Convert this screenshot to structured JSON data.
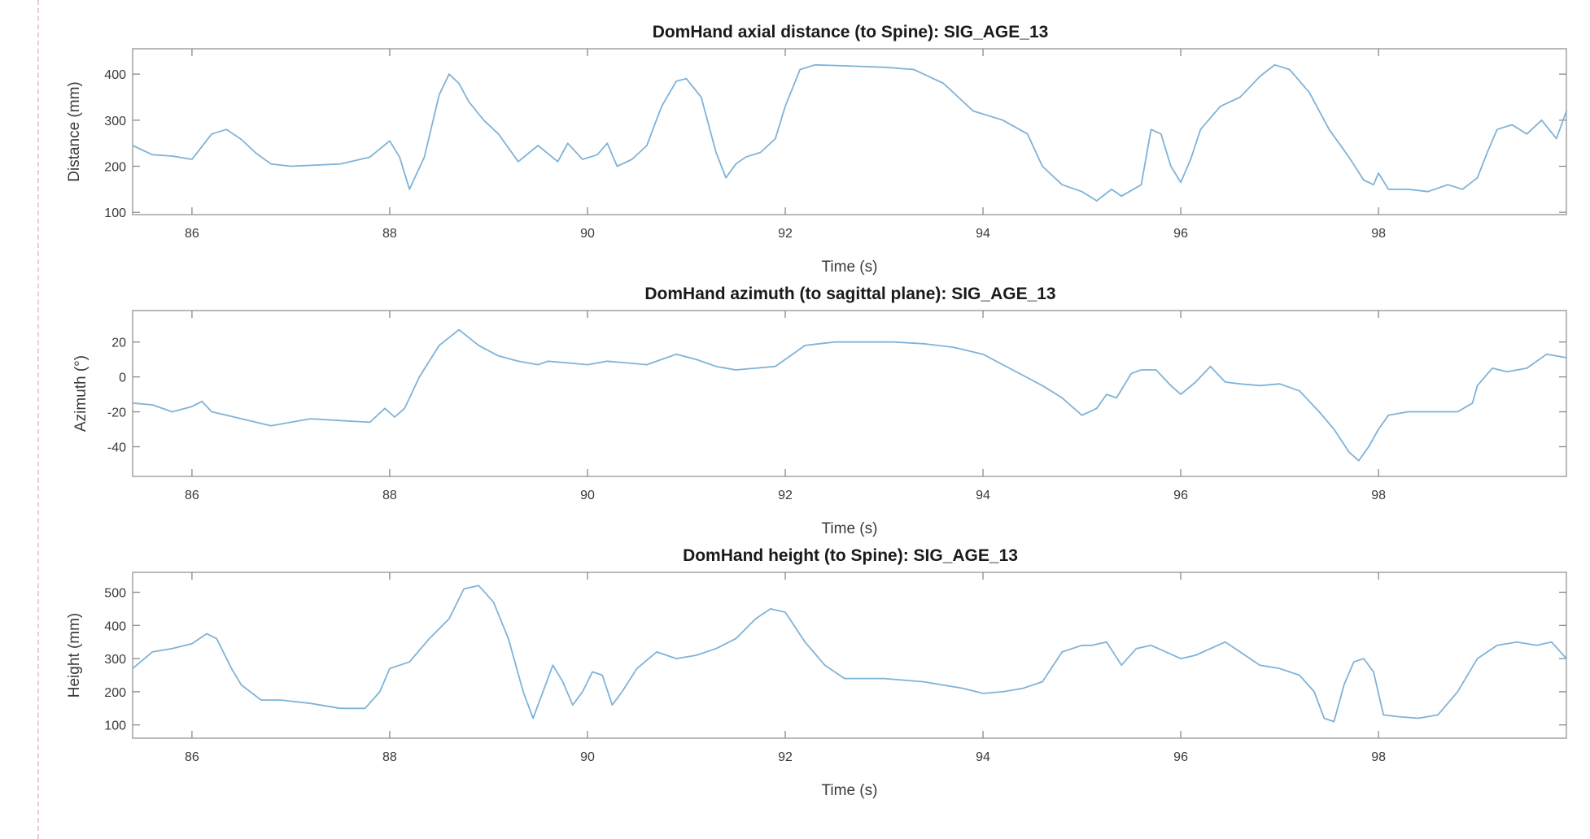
{
  "chart_data": [
    {
      "type": "line",
      "title": "DomHand axial distance (to Spine): SIG_AGE_13",
      "xlabel": "Time (s)",
      "ylabel": "Distance (mm)",
      "xlim": [
        85.4,
        99.9
      ],
      "ylim": [
        95,
        455
      ],
      "xticks": [
        86,
        88,
        90,
        92,
        94,
        96,
        98
      ],
      "yticks": [
        100,
        200,
        300,
        400
      ],
      "color": "#7fb3d8",
      "grid": false,
      "x": [
        85.4,
        85.6,
        85.8,
        86.0,
        86.2,
        86.35,
        86.5,
        86.65,
        86.8,
        87.0,
        87.2,
        87.5,
        87.8,
        88.0,
        88.1,
        88.2,
        88.35,
        88.5,
        88.6,
        88.7,
        88.8,
        88.95,
        89.1,
        89.3,
        89.5,
        89.7,
        89.8,
        89.95,
        90.1,
        90.2,
        90.3,
        90.45,
        90.6,
        90.75,
        90.9,
        91.0,
        91.15,
        91.3,
        91.4,
        91.5,
        91.6,
        91.75,
        91.9,
        92.0,
        92.15,
        92.3,
        92.6,
        93.0,
        93.3,
        93.6,
        93.9,
        94.2,
        94.45,
        94.6,
        94.8,
        95.0,
        95.15,
        95.3,
        95.4,
        95.6,
        95.7,
        95.8,
        95.9,
        96.0,
        96.1,
        96.2,
        96.4,
        96.6,
        96.8,
        96.95,
        97.1,
        97.3,
        97.5,
        97.7,
        97.85,
        97.95,
        98.0,
        98.1,
        98.3,
        98.5,
        98.7,
        98.85,
        99.0,
        99.1,
        99.2,
        99.35,
        99.5,
        99.65,
        99.8,
        99.9
      ],
      "y": [
        245,
        225,
        222,
        215,
        270,
        280,
        258,
        228,
        205,
        200,
        202,
        205,
        220,
        255,
        220,
        150,
        220,
        355,
        400,
        380,
        340,
        300,
        270,
        210,
        245,
        210,
        250,
        215,
        225,
        250,
        200,
        215,
        245,
        330,
        385,
        390,
        350,
        230,
        175,
        205,
        220,
        230,
        260,
        330,
        410,
        420,
        418,
        415,
        410,
        380,
        320,
        300,
        270,
        200,
        160,
        145,
        125,
        150,
        135,
        160,
        280,
        270,
        200,
        165,
        215,
        280,
        330,
        350,
        395,
        420,
        410,
        360,
        280,
        220,
        170,
        160,
        185,
        150,
        150,
        145,
        160,
        150,
        175,
        230,
        280,
        290,
        270,
        300,
        260,
        320
      ]
    },
    {
      "type": "line",
      "title": "DomHand azimuth (to sagittal plane): SIG_AGE_13",
      "xlabel": "Time (s)",
      "ylabel": "Azimuth (°)",
      "xlim": [
        85.4,
        99.9
      ],
      "ylim": [
        -57,
        38
      ],
      "xticks": [
        86,
        88,
        90,
        92,
        94,
        96,
        98
      ],
      "yticks": [
        -40,
        -20,
        0,
        20
      ],
      "color": "#7fb3d8",
      "grid": false,
      "x": [
        85.4,
        85.6,
        85.8,
        86.0,
        86.1,
        86.2,
        86.35,
        86.5,
        86.8,
        87.0,
        87.2,
        87.5,
        87.8,
        87.95,
        88.05,
        88.15,
        88.3,
        88.5,
        88.7,
        88.9,
        89.1,
        89.3,
        89.5,
        89.6,
        89.8,
        90.0,
        90.2,
        90.4,
        90.6,
        90.75,
        90.9,
        91.1,
        91.3,
        91.5,
        91.7,
        91.9,
        92.0,
        92.2,
        92.5,
        92.8,
        93.1,
        93.4,
        93.7,
        94.0,
        94.3,
        94.6,
        94.8,
        95.0,
        95.15,
        95.25,
        95.35,
        95.5,
        95.6,
        95.75,
        95.9,
        96.0,
        96.15,
        96.3,
        96.45,
        96.6,
        96.8,
        97.0,
        97.2,
        97.4,
        97.55,
        97.7,
        97.8,
        97.9,
        98.0,
        98.1,
        98.3,
        98.6,
        98.8,
        98.95,
        99.0,
        99.15,
        99.3,
        99.5,
        99.7,
        99.9
      ],
      "y": [
        -15,
        -16,
        -20,
        -17,
        -14,
        -20,
        -22,
        -24,
        -28,
        -26,
        -24,
        -25,
        -26,
        -18,
        -23,
        -18,
        0,
        18,
        27,
        18,
        12,
        9,
        7,
        9,
        8,
        7,
        9,
        8,
        7,
        10,
        13,
        10,
        6,
        4,
        5,
        6,
        10,
        18,
        20,
        20,
        20,
        19,
        17,
        13,
        4,
        -5,
        -12,
        -22,
        -18,
        -10,
        -12,
        2,
        4,
        4,
        -5,
        -10,
        -3,
        6,
        -3,
        -4,
        -5,
        -4,
        -8,
        -20,
        -30,
        -43,
        -48,
        -40,
        -30,
        -22,
        -20,
        -20,
        -20,
        -15,
        -5,
        5,
        3,
        5,
        13,
        11
      ]
    },
    {
      "type": "line",
      "title": "DomHand height (to Spine): SIG_AGE_13",
      "xlabel": "Time (s)",
      "ylabel": "Height (mm)",
      "xlim": [
        85.4,
        99.9
      ],
      "ylim": [
        60,
        560
      ],
      "xticks": [
        86,
        88,
        90,
        92,
        94,
        96,
        98
      ],
      "yticks": [
        100,
        200,
        300,
        400,
        500
      ],
      "color": "#7fb3d8",
      "grid": false,
      "x": [
        85.4,
        85.6,
        85.8,
        86.0,
        86.15,
        86.25,
        86.4,
        86.5,
        86.7,
        86.9,
        87.2,
        87.5,
        87.75,
        87.9,
        88.0,
        88.2,
        88.4,
        88.6,
        88.75,
        88.9,
        89.05,
        89.2,
        89.35,
        89.45,
        89.55,
        89.65,
        89.75,
        89.85,
        89.95,
        90.05,
        90.15,
        90.25,
        90.35,
        90.5,
        90.7,
        90.9,
        91.1,
        91.3,
        91.5,
        91.7,
        91.85,
        92.0,
        92.2,
        92.4,
        92.6,
        93.0,
        93.4,
        93.8,
        94.0,
        94.2,
        94.4,
        94.6,
        94.8,
        95.0,
        95.1,
        95.25,
        95.4,
        95.55,
        95.7,
        95.85,
        96.0,
        96.15,
        96.3,
        96.45,
        96.6,
        96.8,
        97.0,
        97.2,
        97.35,
        97.45,
        97.55,
        97.65,
        97.75,
        97.85,
        97.95,
        98.05,
        98.2,
        98.4,
        98.6,
        98.8,
        99.0,
        99.2,
        99.4,
        99.6,
        99.75,
        99.9
      ],
      "y": [
        270,
        320,
        330,
        345,
        375,
        360,
        270,
        220,
        175,
        175,
        165,
        150,
        150,
        200,
        270,
        290,
        360,
        420,
        510,
        520,
        470,
        360,
        200,
        120,
        200,
        280,
        230,
        160,
        200,
        260,
        250,
        160,
        200,
        270,
        320,
        300,
        310,
        330,
        360,
        420,
        450,
        440,
        350,
        280,
        240,
        240,
        230,
        210,
        195,
        200,
        210,
        230,
        320,
        340,
        340,
        350,
        280,
        330,
        340,
        320,
        300,
        310,
        330,
        350,
        320,
        280,
        270,
        250,
        200,
        120,
        110,
        220,
        290,
        300,
        260,
        130,
        125,
        120,
        130,
        200,
        300,
        340,
        350,
        340,
        350,
        300
      ]
    }
  ]
}
